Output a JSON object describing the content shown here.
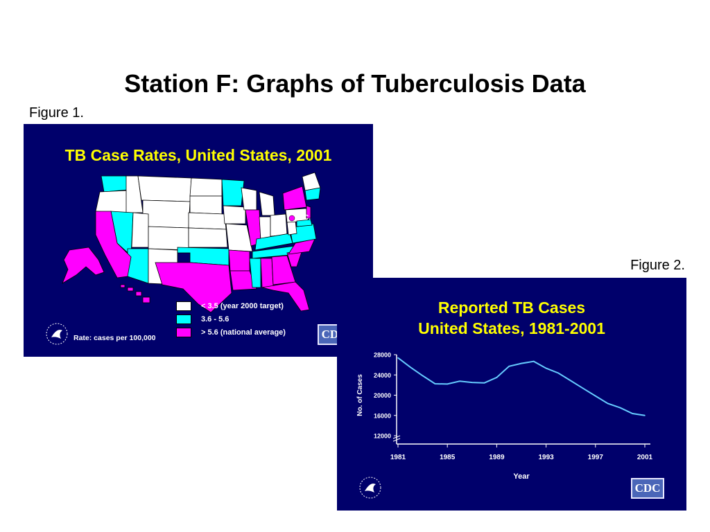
{
  "page": {
    "title": "Station F: Graphs of Tuberculosis Data",
    "figure1_label": "Figure 1.",
    "figure2_label": "Figure 2."
  },
  "figure1": {
    "title": "TB Case Rates, United States, 2001",
    "dc_label": "D.C.",
    "legend": [
      {
        "label": "< 3.5 (year 2000 target)",
        "color": "#ffffff"
      },
      {
        "label": "3.6 - 5.6",
        "color": "#00ffff"
      },
      {
        "label": "> 5.6 (national average)",
        "color": "#ff00ff"
      }
    ],
    "rate_note": "Rate: cases per 100,000",
    "logo_text": "CDC"
  },
  "figure2": {
    "logo_text": "CDC"
  },
  "colors": {
    "panel_background": "#00006b",
    "title_yellow": "#ffff00",
    "line_color": "#66ccff"
  },
  "chart_data": [
    {
      "type": "map",
      "title": "TB Case Rates, United States, 2001",
      "categories": [
        "< 3.5 (year 2000 target)",
        "3.6 - 5.6",
        "> 5.6 (national average)"
      ],
      "note": "Rate: cases per 100,000"
    },
    {
      "type": "line",
      "title": "Reported TB Cases\nUnited States, 1981-2001",
      "title_lines": [
        "Reported TB Cases",
        "United States, 1981-2001"
      ],
      "xlabel": "Year",
      "ylabel": "No. of Cases",
      "x": [
        1981,
        1982,
        1983,
        1984,
        1985,
        1986,
        1987,
        1988,
        1989,
        1990,
        1991,
        1992,
        1993,
        1994,
        1995,
        1996,
        1997,
        1998,
        1999,
        2000,
        2001
      ],
      "values": [
        27373,
        25520,
        23846,
        22255,
        22201,
        22768,
        22517,
        22436,
        23495,
        25701,
        26283,
        26673,
        25313,
        24361,
        22860,
        21337,
        19851,
        18361,
        17531,
        16377,
        15989
      ],
      "xticks": [
        1981,
        1985,
        1989,
        1993,
        1997,
        2001
      ],
      "yticks": [
        12000,
        16000,
        20000,
        24000,
        28000
      ],
      "ylim": [
        12000,
        28000
      ],
      "xlim": [
        1981,
        2001
      ],
      "grid": false
    }
  ]
}
